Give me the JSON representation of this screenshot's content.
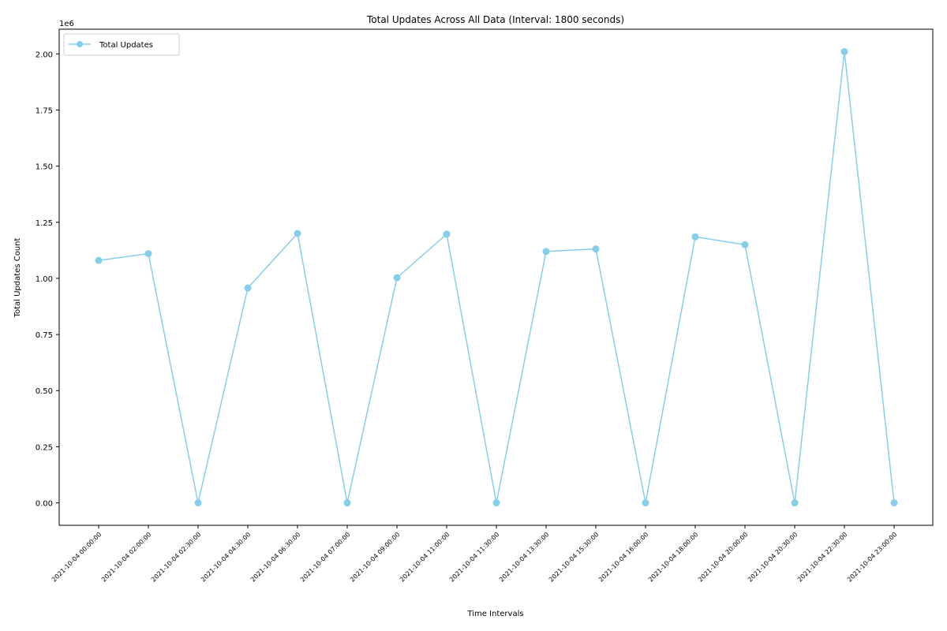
{
  "chart_data": {
    "type": "line",
    "title": "Total Updates Across All Data (Interval: 1800 seconds)",
    "xlabel": "Time Intervals",
    "ylabel": "Total Updates Count",
    "offset_label": "1e6",
    "categories": [
      "2021-10-04 00:00:00",
      "2021-10-04 02:00:00",
      "2021-10-04 02:30:00",
      "2021-10-04 04:30:00",
      "2021-10-04 06:30:00",
      "2021-10-04 07:00:00",
      "2021-10-04 09:00:00",
      "2021-10-04 11:00:00",
      "2021-10-04 11:30:00",
      "2021-10-04 13:30:00",
      "2021-10-04 15:30:00",
      "2021-10-04 16:00:00",
      "2021-10-04 18:00:00",
      "2021-10-04 20:00:00",
      "2021-10-04 20:30:00",
      "2021-10-04 22:30:00",
      "2021-10-04 23:00:00"
    ],
    "series": [
      {
        "name": "Total Updates",
        "color": "#87ceeb",
        "values": [
          1080000,
          1110000,
          0,
          957000,
          1200000,
          0,
          1003000,
          1197000,
          0,
          1120000,
          1131000,
          0,
          1185000,
          1150000,
          0,
          2010000,
          0
        ]
      }
    ],
    "ylim": [
      -100000,
      2110000
    ],
    "yticks": [
      0,
      250000,
      500000,
      750000,
      1000000,
      1250000,
      1500000,
      1750000,
      2000000
    ],
    "ytick_labels": [
      "0.00",
      "0.25",
      "0.50",
      "0.75",
      "1.00",
      "1.25",
      "1.50",
      "1.75",
      "2.00"
    ],
    "grid": false,
    "legend": "top-left"
  }
}
